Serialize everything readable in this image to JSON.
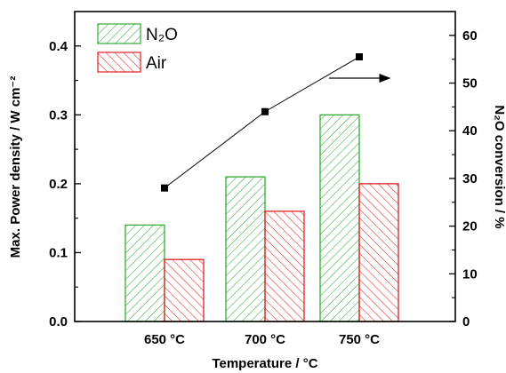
{
  "chart_data": {
    "type": "bar",
    "categories": [
      "650 °C",
      "700 °C",
      "750 °C"
    ],
    "xlabel": "Temperature / °C",
    "ylabel": "Max. Power density / W cm⁻²",
    "y2label": "N₂O conversion / %",
    "ylim": [
      0,
      0.45
    ],
    "y2lim": [
      0,
      65
    ],
    "yticks": [
      "0.0",
      "0.1",
      "0.2",
      "0.3",
      "0.4"
    ],
    "y2ticks": [
      "0",
      "10",
      "20",
      "30",
      "40",
      "50",
      "60"
    ],
    "series": [
      {
        "name": "N₂O",
        "axis": "left",
        "kind": "bar",
        "values": [
          0.14,
          0.21,
          0.3
        ],
        "color": "#33aa33",
        "hatch": "forward"
      },
      {
        "name": "Air",
        "axis": "left",
        "kind": "bar",
        "values": [
          0.09,
          0.16,
          0.2
        ],
        "color": "#dd2222",
        "hatch": "backward"
      },
      {
        "axis": "right",
        "kind": "line",
        "values": [
          28,
          44,
          55.5
        ],
        "color": "#000000"
      }
    ],
    "legend": {
      "position": "top-left",
      "items": [
        "N₂O",
        "Air"
      ]
    },
    "grid": false,
    "annotation": "arrow pointing right (conversion on right axis)"
  }
}
